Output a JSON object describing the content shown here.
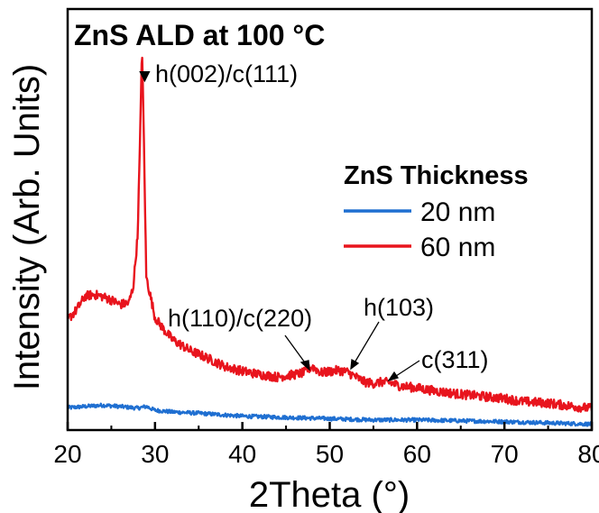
{
  "chart_data": {
    "type": "line",
    "title": "ZnS ALD at 100 °C",
    "xlabel": "2Theta (°)",
    "ylabel": "Intensity (Arb. Units)",
    "xlim": [
      20,
      80
    ],
    "ylim": [
      0,
      100
    ],
    "x_ticks": [
      "20",
      "30",
      "40",
      "50",
      "60",
      "70",
      "80"
    ],
    "y_ticks_labeled": false,
    "legend": {
      "title": "ZnS Thickness",
      "placement": "center-right"
    },
    "series": [
      {
        "name": "20 nm",
        "color": "#1f6fd1",
        "x": [
          20,
          22,
          24,
          26,
          28,
          29,
          30,
          32,
          35,
          40,
          45,
          50,
          55,
          60,
          65,
          70,
          75,
          80
        ],
        "y": [
          5.3,
          5.6,
          5.9,
          5.6,
          5.2,
          5.6,
          4.7,
          4.3,
          4.0,
          3.3,
          3.0,
          2.7,
          2.4,
          2.4,
          2.2,
          2.0,
          1.7,
          1.4
        ]
      },
      {
        "name": "60 nm",
        "color": "#e8141d",
        "x": [
          20,
          21,
          22,
          23,
          24,
          25,
          26,
          27,
          27.5,
          28,
          28.3,
          28.5,
          28.7,
          29,
          29.5,
          30,
          31,
          32,
          34,
          36,
          38,
          40,
          42,
          44,
          46,
          47,
          48,
          49,
          50,
          51,
          52,
          53,
          54,
          55,
          56,
          57,
          58,
          60,
          62,
          65,
          68,
          70,
          72,
          75,
          78,
          80
        ],
        "y": [
          26.2,
          28.5,
          31.8,
          32.2,
          31.7,
          30.9,
          29.8,
          30.2,
          33.9,
          45.8,
          69.5,
          91.6,
          72.0,
          36.4,
          31.6,
          26.7,
          23.9,
          21.5,
          18.9,
          17.1,
          15.1,
          14.0,
          13.2,
          12.6,
          13.2,
          13.6,
          15.1,
          13.6,
          13.9,
          14.2,
          13.8,
          12.6,
          11.4,
          11.1,
          11.4,
          11.2,
          10.5,
          10.0,
          9.3,
          8.5,
          7.9,
          7.5,
          6.8,
          6.4,
          5.6,
          5.1
        ]
      }
    ],
    "annotations": [
      {
        "text": "h(002)/c(111)",
        "x": 28.5,
        "marker": "▼"
      },
      {
        "text": "h(110)/c(220)",
        "x": 47.6
      },
      {
        "text": "h(103)",
        "x": 52.2
      },
      {
        "text": "c(311)",
        "x": 56.4
      }
    ]
  }
}
